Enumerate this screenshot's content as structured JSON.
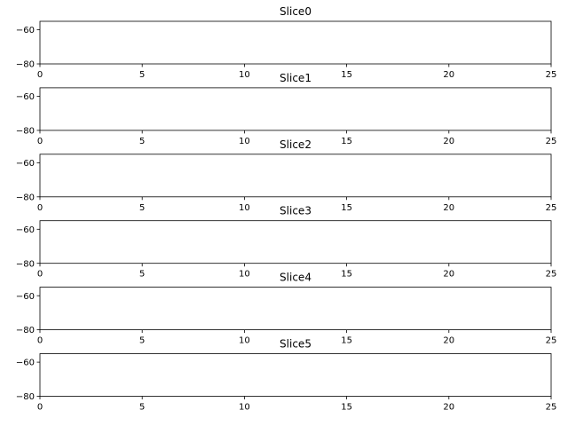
{
  "chart_data": [
    {
      "type": "line",
      "title": "Slice0",
      "xlabel": "",
      "ylabel": "",
      "xlim": [
        0,
        25
      ],
      "ylim": [
        -80,
        -55
      ],
      "xticks": [
        0,
        5,
        10,
        15,
        20,
        25
      ],
      "yticks": [
        -80,
        -60
      ],
      "xtick_labels": [
        "0",
        "5",
        "10",
        "15",
        "20",
        "25"
      ],
      "ytick_labels": [
        "−80",
        "−60"
      ],
      "series": [],
      "grid": false
    },
    {
      "type": "line",
      "title": "Slice1",
      "xlabel": "",
      "ylabel": "",
      "xlim": [
        0,
        25
      ],
      "ylim": [
        -80,
        -55
      ],
      "xticks": [
        0,
        5,
        10,
        15,
        20,
        25
      ],
      "yticks": [
        -80,
        -60
      ],
      "xtick_labels": [
        "0",
        "5",
        "10",
        "15",
        "20",
        "25"
      ],
      "ytick_labels": [
        "−80",
        "−60"
      ],
      "series": [],
      "grid": false
    },
    {
      "type": "line",
      "title": "Slice2",
      "xlabel": "",
      "ylabel": "",
      "xlim": [
        0,
        25
      ],
      "ylim": [
        -80,
        -55
      ],
      "xticks": [
        0,
        5,
        10,
        15,
        20,
        25
      ],
      "yticks": [
        -80,
        -60
      ],
      "xtick_labels": [
        "0",
        "5",
        "10",
        "15",
        "20",
        "25"
      ],
      "ytick_labels": [
        "−80",
        "−60"
      ],
      "series": [],
      "grid": false
    },
    {
      "type": "line",
      "title": "Slice3",
      "xlabel": "",
      "ylabel": "",
      "xlim": [
        0,
        25
      ],
      "ylim": [
        -80,
        -55
      ],
      "xticks": [
        0,
        5,
        10,
        15,
        20,
        25
      ],
      "yticks": [
        -80,
        -60
      ],
      "xtick_labels": [
        "0",
        "5",
        "10",
        "15",
        "20",
        "25"
      ],
      "ytick_labels": [
        "−80",
        "−60"
      ],
      "series": [],
      "grid": false
    },
    {
      "type": "line",
      "title": "Slice4",
      "xlabel": "",
      "ylabel": "",
      "xlim": [
        0,
        25
      ],
      "ylim": [
        -80,
        -55
      ],
      "xticks": [
        0,
        5,
        10,
        15,
        20,
        25
      ],
      "yticks": [
        -80,
        -60
      ],
      "xtick_labels": [
        "0",
        "5",
        "10",
        "15",
        "20",
        "25"
      ],
      "ytick_labels": [
        "−80",
        "−60"
      ],
      "series": [],
      "grid": false
    },
    {
      "type": "line",
      "title": "Slice5",
      "xlabel": "",
      "ylabel": "",
      "xlim": [
        0,
        25
      ],
      "ylim": [
        -80,
        -55
      ],
      "xticks": [
        0,
        5,
        10,
        15,
        20,
        25
      ],
      "yticks": [
        -80,
        -60
      ],
      "xtick_labels": [
        "0",
        "5",
        "10",
        "15",
        "20",
        "25"
      ],
      "ytick_labels": [
        "−80",
        "−60"
      ],
      "series": [],
      "grid": false
    }
  ]
}
